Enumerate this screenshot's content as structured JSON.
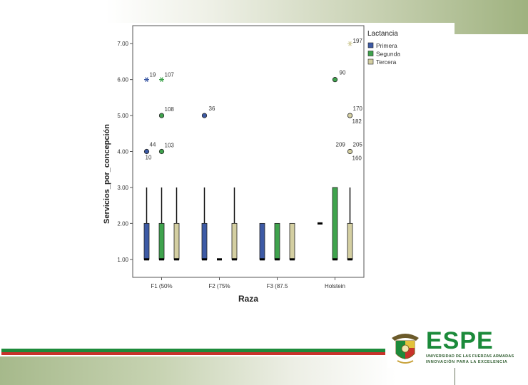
{
  "chart_data": {
    "type": "boxplot",
    "xlabel": "Raza",
    "ylabel": "Servicios_por_concepción",
    "ylim": [
      0.5,
      7.5
    ],
    "yticks": [
      "1.00",
      "2.00",
      "3.00",
      "4.00",
      "5.00",
      "6.00",
      "7.00"
    ],
    "categories": [
      "F1 (50%",
      "F2 (75%",
      "F3 (87.5",
      "Holstein"
    ],
    "legend": {
      "title": "Lactancia",
      "position": "top-right",
      "entries": [
        "Primera",
        "Segunda",
        "Tercera"
      ]
    },
    "series": [
      {
        "name": "Primera",
        "color": "#3d5aa5",
        "boxes": [
          {
            "category": "F1 (50%",
            "min": 1,
            "q1": 1,
            "median": 1,
            "q3": 2,
            "max": 3
          },
          {
            "category": "F2 (75%",
            "min": 1,
            "q1": 1,
            "median": 1,
            "q3": 2,
            "max": 3
          },
          {
            "category": "F3 (87.5",
            "min": 1,
            "q1": 1,
            "median": 1,
            "q3": 2,
            "max": 2
          },
          {
            "category": "Holstein",
            "min": 2,
            "q1": 2,
            "median": 2,
            "q3": 2,
            "max": 2
          }
        ]
      },
      {
        "name": "Segunda",
        "color": "#3fa34d",
        "boxes": [
          {
            "category": "F1 (50%",
            "min": 1,
            "q1": 1,
            "median": 1,
            "q3": 2,
            "max": 3
          },
          {
            "category": "F2 (75%",
            "min": 1,
            "q1": 1,
            "median": 1,
            "q3": 1,
            "max": 1
          },
          {
            "category": "F3 (87.5",
            "min": 1,
            "q1": 1,
            "median": 1,
            "q3": 2,
            "max": 2
          },
          {
            "category": "Holstein",
            "min": 1,
            "q1": 1,
            "median": 1,
            "q3": 3,
            "max": 3
          }
        ]
      },
      {
        "name": "Tercera",
        "color": "#d4cfa2",
        "boxes": [
          {
            "category": "F1 (50%",
            "min": 1,
            "q1": 1,
            "median": 1,
            "q3": 2,
            "max": 3
          },
          {
            "category": "F2 (75%",
            "min": 1,
            "q1": 1,
            "median": 1,
            "q3": 2,
            "max": 3
          },
          {
            "category": "F3 (87.5",
            "min": 1,
            "q1": 1,
            "median": 1,
            "q3": 2,
            "max": 2
          },
          {
            "category": "Holstein",
            "min": 1,
            "q1": 1,
            "median": 1,
            "q3": 2,
            "max": 3
          }
        ]
      }
    ],
    "outliers": [
      {
        "series": "Primera",
        "category": "F1 (50%",
        "y": 6,
        "marker": "star",
        "label": "19"
      },
      {
        "series": "Segunda",
        "category": "F1 (50%",
        "y": 6,
        "marker": "star",
        "label": "107"
      },
      {
        "series": "Segunda",
        "category": "F1 (50%",
        "y": 5,
        "marker": "circle",
        "label": "108"
      },
      {
        "series": "Primera",
        "category": "F1 (50%",
        "y": 4,
        "marker": "circle",
        "label": "44"
      },
      {
        "series": "Primera",
        "category": "F1 (50%",
        "y": 4,
        "marker": "none",
        "label": "10"
      },
      {
        "series": "Segunda",
        "category": "F1 (50%",
        "y": 4,
        "marker": "circle",
        "label": "103"
      },
      {
        "series": "Primera",
        "category": "F2 (75%",
        "y": 5,
        "marker": "circle",
        "label": "36"
      },
      {
        "series": "Segunda",
        "category": "Holstein",
        "y": 6,
        "marker": "circle",
        "label": "90"
      },
      {
        "series": "Tercera",
        "category": "Holstein",
        "y": 7,
        "marker": "star",
        "label": "197"
      },
      {
        "series": "Tercera",
        "category": "Holstein",
        "y": 5,
        "marker": "circle",
        "label": "170"
      },
      {
        "series": "Tercera",
        "category": "Holstein",
        "y": 5,
        "marker": "none",
        "label": "182"
      },
      {
        "series": "Tercera",
        "category": "Holstein",
        "y": 4,
        "marker": "circle",
        "label": "205"
      },
      {
        "series": "Tercera",
        "category": "Holstein",
        "y": 4,
        "marker": "none",
        "label": "209"
      },
      {
        "series": "Tercera",
        "category": "Holstein",
        "y": 4,
        "marker": "none",
        "label": "160"
      }
    ]
  },
  "logo": {
    "word": "ESPE",
    "subtitle_line1": "UNIVERSIDAD DE LAS FUERZAS ARMADAS",
    "subtitle_line2": "INNOVACIÓN PARA LA EXCELENCIA",
    "brand_color": "#1b8a3a"
  },
  "decor": {
    "stripe_green": "#1d8a3a",
    "stripe_red": "#c8322a"
  }
}
